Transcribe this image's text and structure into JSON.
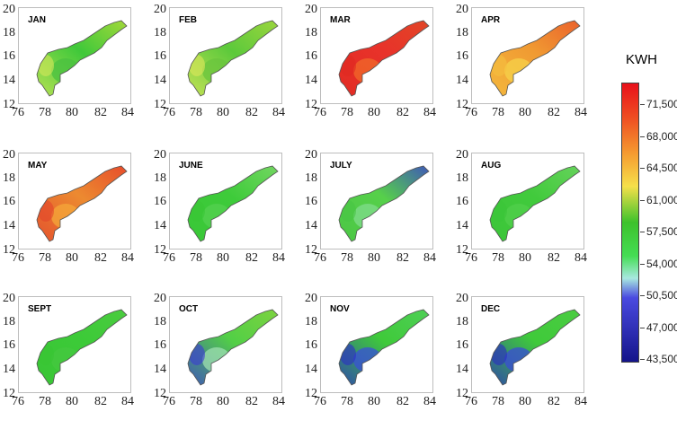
{
  "legend": {
    "title": "KWH",
    "ticks": [
      "71,500",
      "68,000",
      "64,500",
      "61,000",
      "57,500",
      "54,000",
      "50,500",
      "47,000",
      "43,500"
    ]
  },
  "axis": {
    "yticks": [
      "20",
      "18",
      "16",
      "14",
      "12"
    ],
    "xticks": [
      "76",
      "78",
      "80",
      "82",
      "84"
    ]
  },
  "panels": [
    {
      "month": "JAN",
      "base": "#3fc83a",
      "north": "#b8dc3a",
      "south": "#d6e85a",
      "patch": "#49c040"
    },
    {
      "month": "FEB",
      "base": "#5cc93b",
      "north": "#a9d83e",
      "south": "#dfe85c",
      "patch": "#69c43e"
    },
    {
      "month": "MAR",
      "base": "#e8322a",
      "north": "#e04a26",
      "south": "#e02a22",
      "patch": "#f06a2a"
    },
    {
      "month": "APR",
      "base": "#f09a32",
      "north": "#e9552a",
      "south": "#f5c040",
      "patch": "#f6d24a"
    },
    {
      "month": "MAY",
      "base": "#ec8a30",
      "north": "#e6402a",
      "south": "#e2442c",
      "patch": "#f4a83a"
    },
    {
      "month": "JUNE",
      "base": "#3ecb3a",
      "north": "#7fd86a",
      "south": "#38c636",
      "patch": "#54d050"
    },
    {
      "month": "JULY",
      "base": "#56d04a",
      "north": "#3a3ed0",
      "south": "#48c444",
      "patch": "#80dc8c"
    },
    {
      "month": "AUG",
      "base": "#41ca3c",
      "north": "#6ed462",
      "south": "#3ac438",
      "patch": "#52cf4c"
    },
    {
      "month": "SEPT",
      "base": "#3cca38",
      "north": "#4ecc40",
      "south": "#38c434",
      "patch": "#46c840"
    },
    {
      "month": "OCT",
      "base": "#52cf46",
      "north": "#86d33e",
      "south": "#3a38d6",
      "patch": "#9fe0b0"
    },
    {
      "month": "NOV",
      "base": "#3fca3a",
      "north": "#52d05c",
      "south": "#2b2bc8",
      "patch": "#3a50d8"
    },
    {
      "month": "DEC",
      "base": "#3fca3a",
      "north": "#4ecc44",
      "south": "#2a2ac4",
      "patch": "#3a4cd6"
    }
  ]
}
